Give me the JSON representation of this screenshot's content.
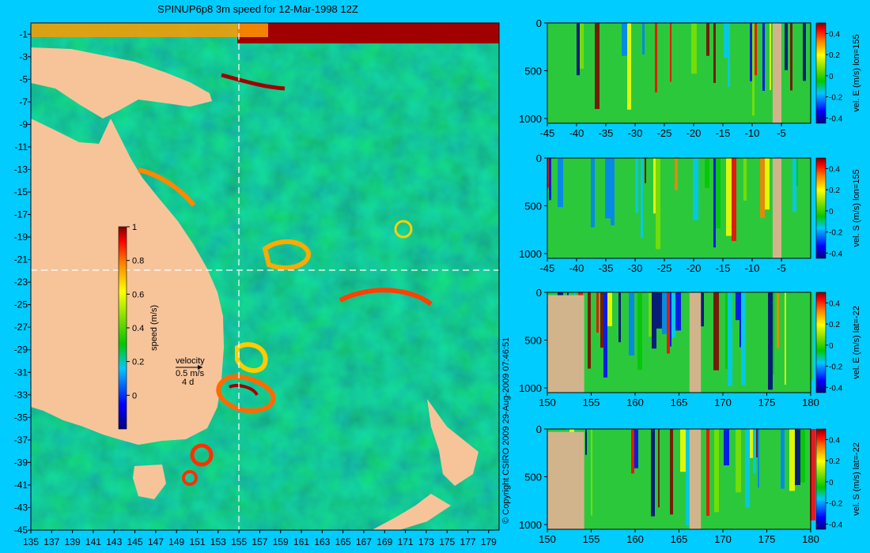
{
  "colors": {
    "background": "#00ccff",
    "land": "#f7c49a",
    "land_section": "#d2b48c",
    "dashed_line": "#ffffff"
  },
  "copyright": "© Copyright CSIRO 2009   29-Aug-2009 07:46:51",
  "chart_data": [
    {
      "type": "heatmap",
      "title": "SPINUP6p8 3m speed for 12-Mar-1998 12Z",
      "x_ticks": [
        "135",
        "137",
        "139",
        "141",
        "143",
        "145",
        "147",
        "149",
        "151",
        "153",
        "155",
        "157",
        "159",
        "161",
        "163",
        "165",
        "167",
        "169",
        "171",
        "173",
        "175",
        "177",
        "179"
      ],
      "y_ticks": [
        "-1",
        "-3",
        "-5",
        "-7",
        "-9",
        "-11",
        "-13",
        "-15",
        "-17",
        "-19",
        "-21",
        "-23",
        "-25",
        "-27",
        "-29",
        "-31",
        "-33",
        "-35",
        "-37",
        "-39",
        "-41",
        "-43",
        "-45"
      ],
      "xlim": [
        135,
        180
      ],
      "ylim": [
        -45,
        0
      ],
      "section_lines": {
        "lon": 155,
        "lat": -22
      },
      "colorbar": {
        "label": "speed (m/s)",
        "ticks": [
          "1",
          "0.8",
          "0.6",
          "0.4",
          "0.2",
          "0"
        ],
        "range": [
          -0.2,
          1
        ]
      },
      "velocity_key": {
        "title": "velocity",
        "speed": "0.5 m/s",
        "time": "4 d"
      }
    },
    {
      "type": "heatmap",
      "x_ticks": [
        "-45",
        "-40",
        "-35",
        "-30",
        "-25",
        "-20",
        "-15",
        "-10",
        "-5"
      ],
      "xlim": [
        -45,
        0
      ],
      "y_ticks": [
        "0",
        "500",
        "1000"
      ],
      "ylim": [
        1050,
        0
      ],
      "colorbar": {
        "label": "vel. E (m/s) lon=155",
        "ticks": [
          "0.4",
          "0.2",
          "0",
          "-0.2",
          "-0.4"
        ],
        "range": [
          -0.45,
          0.5
        ]
      }
    },
    {
      "type": "heatmap",
      "x_ticks": [
        "-45",
        "-40",
        "-35",
        "-30",
        "-25",
        "-20",
        "-15",
        "-10",
        "-5"
      ],
      "xlim": [
        -45,
        0
      ],
      "y_ticks": [
        "0",
        "500",
        "1000"
      ],
      "ylim": [
        1050,
        0
      ],
      "colorbar": {
        "label": "vel. S (m/s) lon=155",
        "ticks": [
          "0.4",
          "0.2",
          "0",
          "-0.2",
          "-0.4"
        ],
        "range": [
          -0.45,
          0.5
        ]
      }
    },
    {
      "type": "heatmap",
      "x_ticks": [
        "150",
        "155",
        "160",
        "165",
        "170",
        "175",
        "180"
      ],
      "xlim": [
        150,
        180
      ],
      "y_ticks": [
        "0",
        "500",
        "1000"
      ],
      "ylim": [
        1050,
        0
      ],
      "colorbar": {
        "label": "vel. E (m/s) lat=-22",
        "ticks": [
          "0.4",
          "0.2",
          "0",
          "-0.2",
          "-0.4"
        ],
        "range": [
          -0.45,
          0.5
        ]
      }
    },
    {
      "type": "heatmap",
      "x_ticks": [
        "150",
        "155",
        "160",
        "165",
        "170",
        "175",
        "180"
      ],
      "xlim": [
        150,
        180
      ],
      "y_ticks": [
        "0",
        "500",
        "1000"
      ],
      "ylim": [
        1050,
        0
      ],
      "colorbar": {
        "label": "vel. S (m/s) lat=-22",
        "ticks": [
          "0.4",
          "0.2",
          "0",
          "-0.2",
          "-0.4"
        ],
        "range": [
          -0.45,
          0.5
        ]
      }
    }
  ]
}
